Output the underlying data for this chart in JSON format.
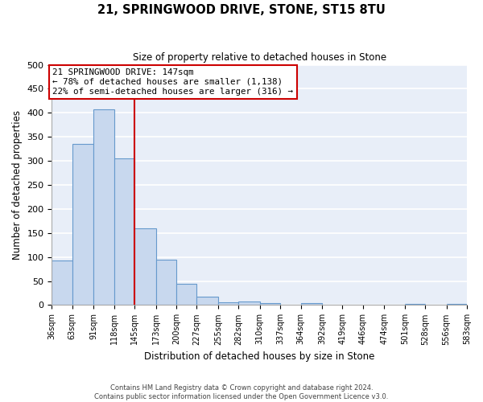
{
  "title": "21, SPRINGWOOD DRIVE, STONE, ST15 8TU",
  "subtitle": "Size of property relative to detached houses in Stone",
  "xlabel": "Distribution of detached houses by size in Stone",
  "ylabel": "Number of detached properties",
  "bar_color": "#c8d8ee",
  "bar_edge_color": "#6699cc",
  "background_color": "#e8eef8",
  "grid_color": "#ffffff",
  "vline_x": 145,
  "vline_color": "#cc0000",
  "annotation_box_color": "#cc0000",
  "bins": [
    36,
    63,
    91,
    118,
    145,
    173,
    200,
    227,
    255,
    282,
    310,
    337,
    364,
    392,
    419,
    446,
    474,
    501,
    528,
    556,
    583
  ],
  "bin_labels": [
    "36sqm",
    "63sqm",
    "91sqm",
    "118sqm",
    "145sqm",
    "173sqm",
    "200sqm",
    "227sqm",
    "255sqm",
    "282sqm",
    "310sqm",
    "337sqm",
    "364sqm",
    "392sqm",
    "419sqm",
    "446sqm",
    "474sqm",
    "501sqm",
    "528sqm",
    "556sqm",
    "583sqm"
  ],
  "counts": [
    93,
    336,
    407,
    305,
    160,
    95,
    44,
    18,
    5,
    7,
    4,
    0,
    4,
    0,
    1,
    0,
    0,
    2,
    0,
    2
  ],
  "ylim": [
    0,
    500
  ],
  "yticks": [
    0,
    50,
    100,
    150,
    200,
    250,
    300,
    350,
    400,
    450,
    500
  ],
  "annotation_title": "21 SPRINGWOOD DRIVE: 147sqm",
  "annotation_line1": "← 78% of detached houses are smaller (1,138)",
  "annotation_line2": "22% of semi-detached houses are larger (316) →",
  "footer_line1": "Contains HM Land Registry data © Crown copyright and database right 2024.",
  "footer_line2": "Contains public sector information licensed under the Open Government Licence v3.0."
}
